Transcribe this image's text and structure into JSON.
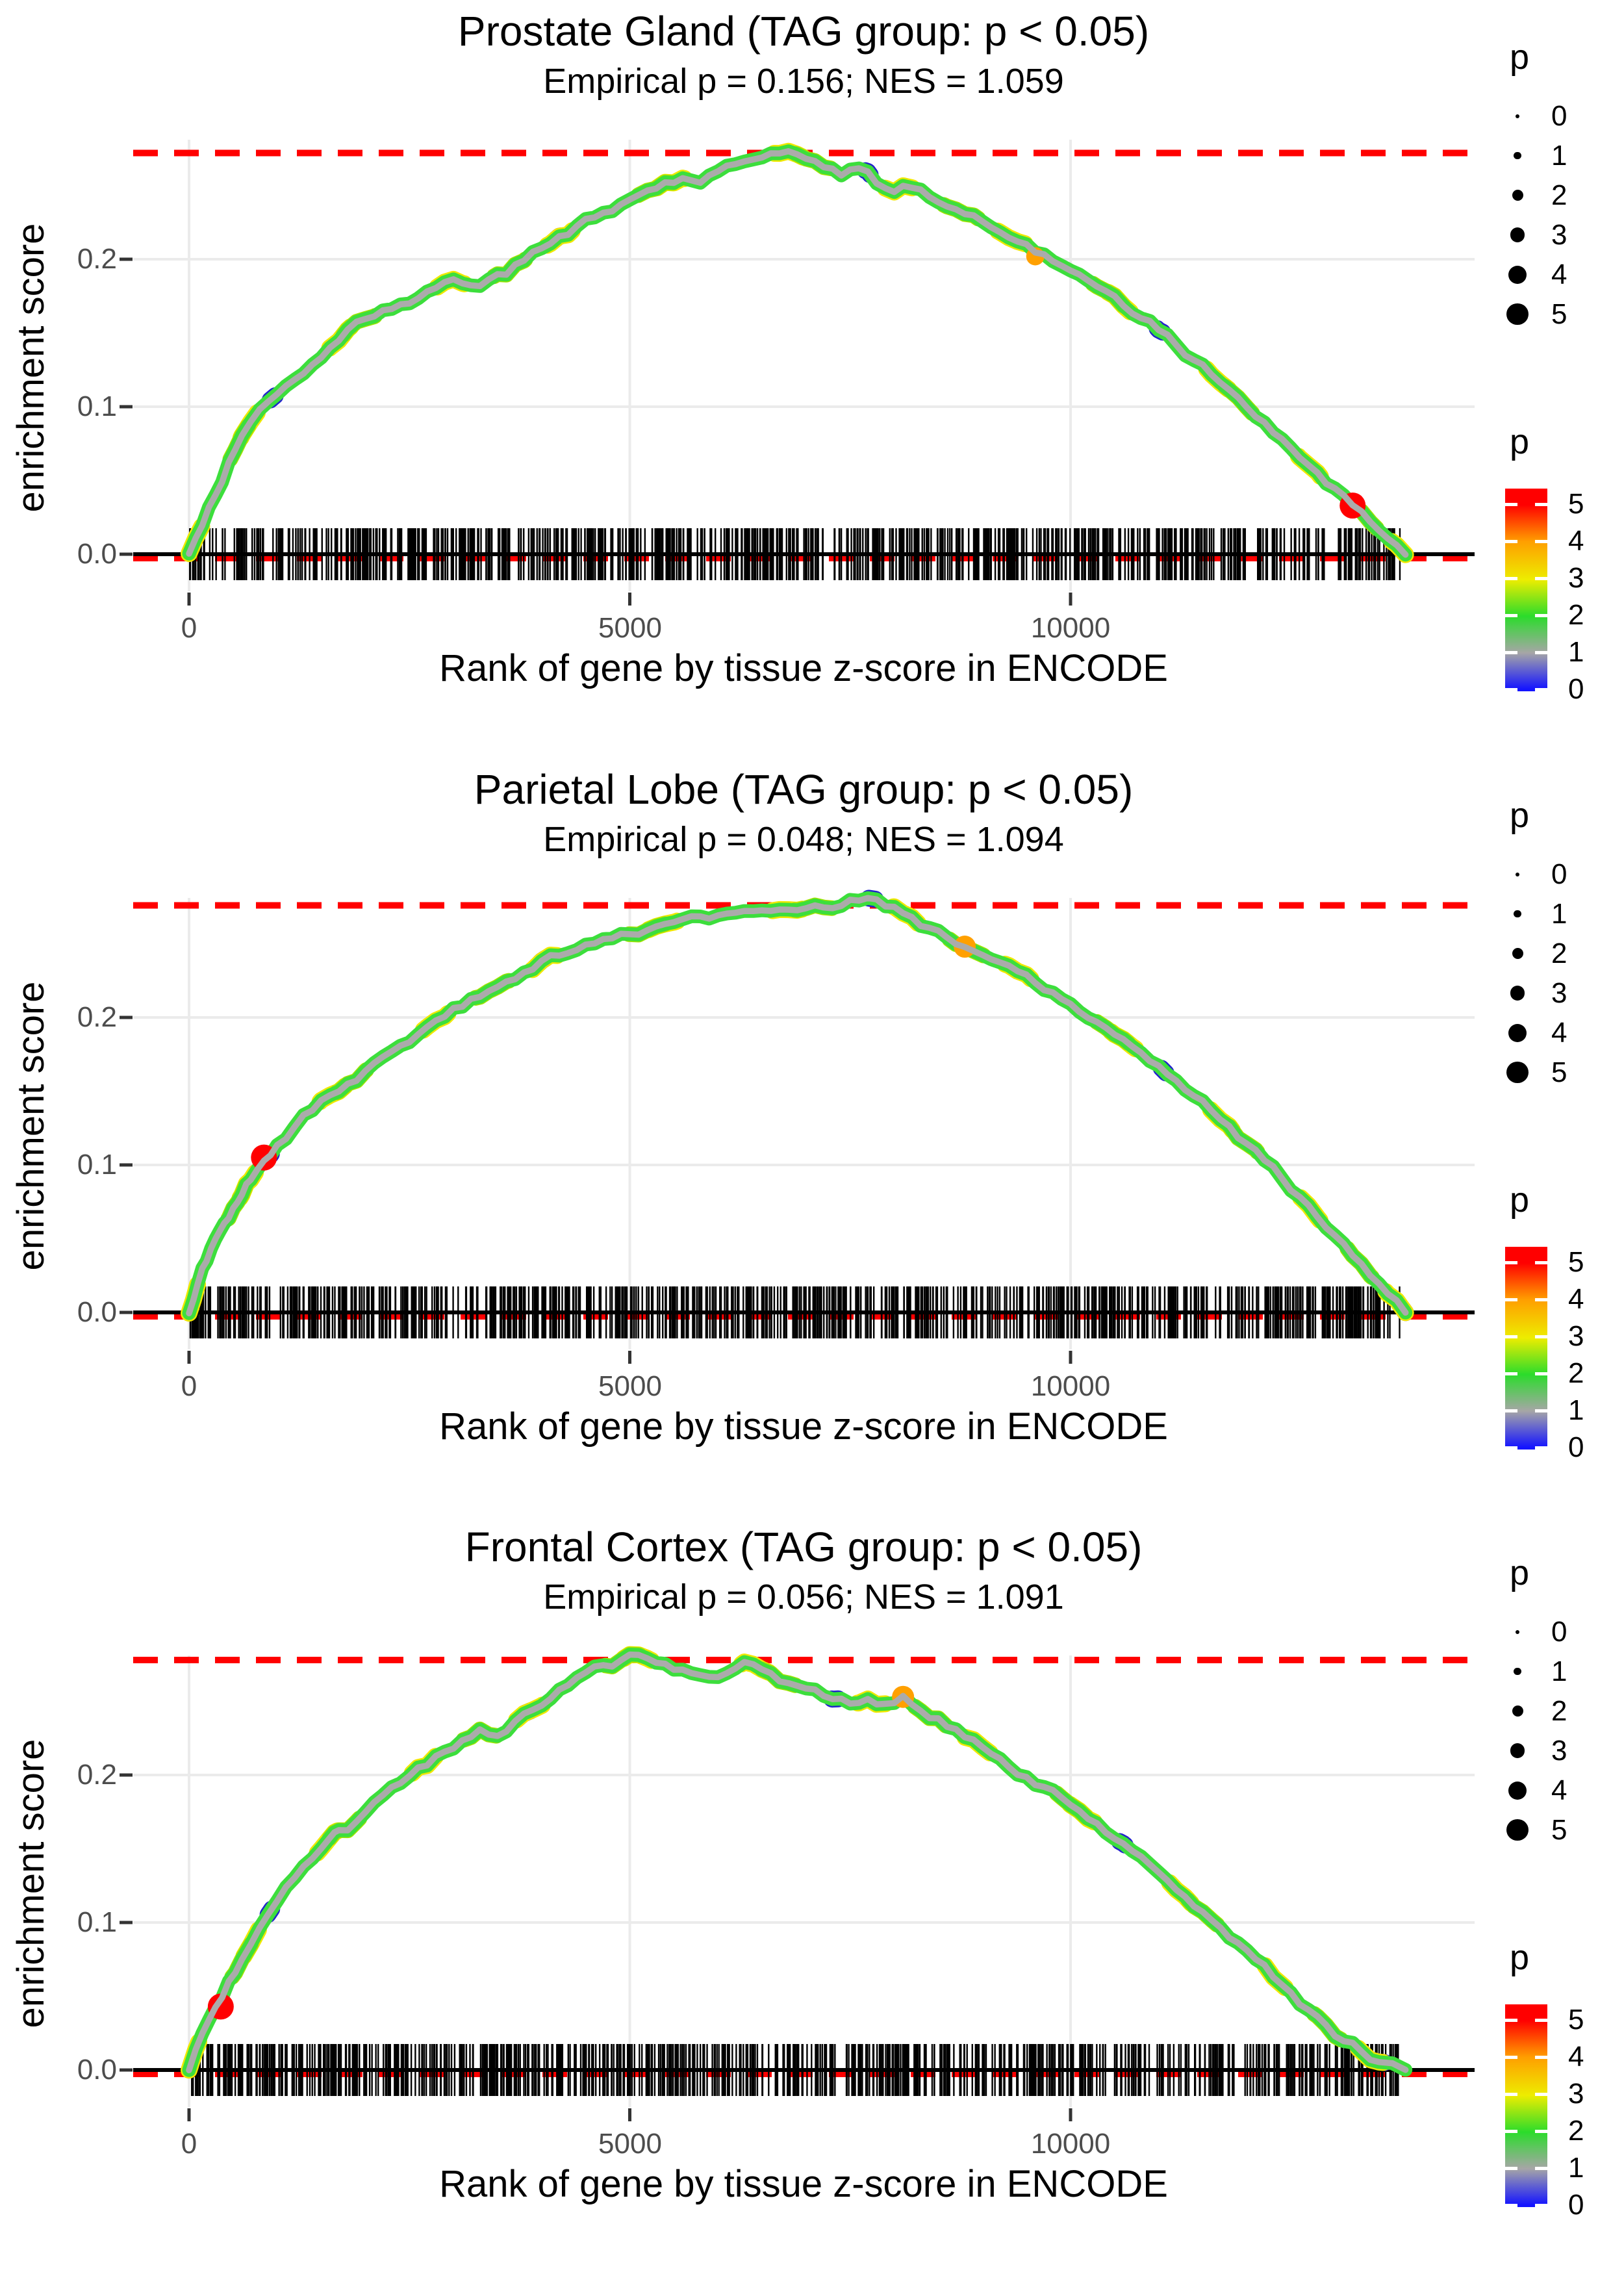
{
  "figure": {
    "background": "#FFFFFF",
    "n_panels": 3
  },
  "colors": {
    "background": "#FFFFFF",
    "grid": "#EBEBEB",
    "axis_tick": "#333333",
    "tick_label": "#4D4D4D",
    "dashed_line": "#FF0000",
    "zero_line": "#000000",
    "rug": "#000000",
    "curve_core_gray": "#ABABAB",
    "curve_green": "#3CDE3C",
    "curve_chartreuse": "#9FE400",
    "curve_yellow": "#F0E800",
    "curve_blue_speck": "#2222CC",
    "highlight_red": "#FF0000",
    "highlight_orange": "#FFA000"
  },
  "axes": {
    "x_ticks": [
      "0",
      "5000",
      "10000"
    ],
    "x_tick_values": [
      0,
      5000,
      10000
    ],
    "y_ticks": [
      "0.0",
      "0.1",
      "0.2"
    ],
    "y_tick_values": [
      0,
      0.1,
      0.2
    ]
  },
  "legend": {
    "size": {
      "title": "p",
      "items": [
        {
          "label": "0",
          "p": 0
        },
        {
          "label": "1",
          "p": 1
        },
        {
          "label": "2",
          "p": 2
        },
        {
          "label": "3",
          "p": 3
        },
        {
          "label": "4",
          "p": 4
        },
        {
          "label": "5",
          "p": 5
        }
      ]
    },
    "color": {
      "title": "p",
      "labels": [
        "5",
        "4",
        "3",
        "2",
        "1",
        "0"
      ],
      "gradient_top_to_bottom": [
        "#FF0000",
        "#FF9E00",
        "#EDED00",
        "#2BDC2B",
        "#A6A6A6",
        "#1414FF"
      ]
    }
  },
  "chart_data": [
    {
      "type": "line",
      "title": "Prostate Gland (TAG group: p < 0.05)",
      "subtitle": "Empirical p = 0.156; NES = 1.059",
      "xlabel": "Rank of gene by tissue z-score in ENCODE",
      "ylabel": "enrichment score",
      "xlim": [
        -634,
        14590
      ],
      "ylim": [
        -0.025,
        0.281
      ],
      "x_ticks": [
        0,
        5000,
        10000
      ],
      "y_ticks": [
        0,
        0.1,
        0.2
      ],
      "dashed_line_y": 0.272,
      "zero_line_y": 0,
      "rug_seed": 11,
      "rug_count": 750,
      "rug_x_range": [
        0,
        13750
      ],
      "series": [
        {
          "name": "running enrichment score (point color/size = p)",
          "points": [
            [
              0,
              0
            ],
            [
              150,
              0.02
            ],
            [
              300,
              0.04
            ],
            [
              450,
              0.062
            ],
            [
              600,
              0.08
            ],
            [
              800,
              0.098
            ],
            [
              1000,
              0.108
            ],
            [
              1200,
              0.118
            ],
            [
              1400,
              0.128
            ],
            [
              1600,
              0.14
            ],
            [
              1800,
              0.152
            ],
            [
              2000,
              0.16
            ],
            [
              2200,
              0.165
            ],
            [
              2400,
              0.17
            ],
            [
              2600,
              0.174
            ],
            [
              2800,
              0.18
            ],
            [
              3000,
              0.186
            ],
            [
              3200,
              0.182
            ],
            [
              3400,
              0.186
            ],
            [
              3600,
              0.19
            ],
            [
              3800,
              0.199
            ],
            [
              4000,
              0.208
            ],
            [
              4200,
              0.215
            ],
            [
              4400,
              0.222
            ],
            [
              4600,
              0.228
            ],
            [
              4800,
              0.232
            ],
            [
              5000,
              0.24
            ],
            [
              5200,
              0.247
            ],
            [
              5400,
              0.252
            ],
            [
              5600,
              0.255
            ],
            [
              5800,
              0.252
            ],
            [
              6000,
              0.259
            ],
            [
              6200,
              0.264
            ],
            [
              6400,
              0.268
            ],
            [
              6600,
              0.272
            ],
            [
              6800,
              0.273
            ],
            [
              7000,
              0.268
            ],
            [
              7200,
              0.262
            ],
            [
              7400,
              0.257
            ],
            [
              7600,
              0.262
            ],
            [
              7800,
              0.252
            ],
            [
              8000,
              0.246
            ],
            [
              8200,
              0.249
            ],
            [
              8400,
              0.242
            ],
            [
              8600,
              0.236
            ],
            [
              8800,
              0.231
            ],
            [
              9000,
              0.226
            ],
            [
              9200,
              0.218
            ],
            [
              9400,
              0.212
            ],
            [
              9600,
              0.205
            ],
            [
              9800,
              0.199
            ],
            [
              10000,
              0.192
            ],
            [
              10200,
              0.185
            ],
            [
              10400,
              0.178
            ],
            [
              10600,
              0.169
            ],
            [
              10800,
              0.16
            ],
            [
              11000,
              0.152
            ],
            [
              11200,
              0.142
            ],
            [
              11400,
              0.132
            ],
            [
              11600,
              0.122
            ],
            [
              11800,
              0.111
            ],
            [
              12000,
              0.1
            ],
            [
              12200,
              0.09
            ],
            [
              12400,
              0.078
            ],
            [
              12600,
              0.066
            ],
            [
              12800,
              0.055
            ],
            [
              13000,
              0.044
            ],
            [
              13200,
              0.033
            ],
            [
              13400,
              0.022
            ],
            [
              13600,
              0.01
            ],
            [
              13800,
              0
            ]
          ]
        }
      ],
      "highlight_points": [
        {
          "x": 13200,
          "y": 0.033,
          "p": 5,
          "color": "#FF0000"
        },
        {
          "x": 9600,
          "y": 0.202,
          "p": 3,
          "color": "#FFA000"
        }
      ]
    },
    {
      "type": "line",
      "title": "Parietal Lobe (TAG group: p < 0.05)",
      "subtitle": "Empirical p = 0.048; NES = 1.094",
      "xlabel": "Rank of gene by tissue z-score in ENCODE",
      "ylabel": "enrichment score",
      "xlim": [
        -634,
        14590
      ],
      "ylim": [
        -0.025,
        0.281
      ],
      "x_ticks": [
        0,
        5000,
        10000
      ],
      "y_ticks": [
        0,
        0.1,
        0.2
      ],
      "dashed_line_y": 0.276,
      "zero_line_y": 0,
      "rug_seed": 29,
      "rug_count": 750,
      "rug_x_range": [
        0,
        13750
      ],
      "series": [
        {
          "name": "running enrichment score (point color/size = p)",
          "points": [
            [
              0,
              0
            ],
            [
              100,
              0.02
            ],
            [
              200,
              0.035
            ],
            [
              300,
              0.05
            ],
            [
              400,
              0.06
            ],
            [
              500,
              0.07
            ],
            [
              600,
              0.08
            ],
            [
              700,
              0.09
            ],
            [
              850,
              0.103
            ],
            [
              1000,
              0.113
            ],
            [
              1200,
              0.126
            ],
            [
              1400,
              0.137
            ],
            [
              1600,
              0.147
            ],
            [
              1800,
              0.155
            ],
            [
              2000,
              0.164
            ],
            [
              2200,
              0.174
            ],
            [
              2400,
              0.181
            ],
            [
              2600,
              0.189
            ],
            [
              2800,
              0.198
            ],
            [
              3000,
              0.206
            ],
            [
              3200,
              0.213
            ],
            [
              3400,
              0.218
            ],
            [
              3600,
              0.224
            ],
            [
              3800,
              0.231
            ],
            [
              4000,
              0.238
            ],
            [
              4200,
              0.242
            ],
            [
              4400,
              0.246
            ],
            [
              4600,
              0.25
            ],
            [
              4800,
              0.253
            ],
            [
              5000,
              0.256
            ],
            [
              5200,
              0.259
            ],
            [
              5400,
              0.263
            ],
            [
              5600,
              0.266
            ],
            [
              5800,
              0.268
            ],
            [
              6000,
              0.269
            ],
            [
              6200,
              0.271
            ],
            [
              6400,
              0.272
            ],
            [
              6600,
              0.272
            ],
            [
              6800,
              0.273
            ],
            [
              7000,
              0.274
            ],
            [
              7200,
              0.275
            ],
            [
              7400,
              0.276
            ],
            [
              7600,
              0.279
            ],
            [
              7800,
              0.28
            ],
            [
              8000,
              0.275
            ],
            [
              8200,
              0.268
            ],
            [
              8400,
              0.261
            ],
            [
              8600,
              0.254
            ],
            [
              8800,
              0.248
            ],
            [
              9000,
              0.243
            ],
            [
              9200,
              0.237
            ],
            [
              9400,
              0.231
            ],
            [
              9600,
              0.224
            ],
            [
              9800,
              0.217
            ],
            [
              10000,
              0.209
            ],
            [
              10200,
              0.2
            ],
            [
              10400,
              0.193
            ],
            [
              10600,
              0.185
            ],
            [
              10800,
              0.176
            ],
            [
              11000,
              0.167
            ],
            [
              11200,
              0.157
            ],
            [
              11400,
              0.147
            ],
            [
              11600,
              0.137
            ],
            [
              11800,
              0.126
            ],
            [
              12000,
              0.115
            ],
            [
              12200,
              0.103
            ],
            [
              12400,
              0.091
            ],
            [
              12600,
              0.078
            ],
            [
              12800,
              0.065
            ],
            [
              13000,
              0.052
            ],
            [
              13200,
              0.038
            ],
            [
              13400,
              0.025
            ],
            [
              13600,
              0.012
            ],
            [
              13800,
              0
            ]
          ]
        }
      ],
      "highlight_points": [
        {
          "x": 850,
          "y": 0.105,
          "p": 5,
          "color": "#FF0000"
        },
        {
          "x": 8800,
          "y": 0.248,
          "p": 4,
          "color": "#FFA000"
        }
      ]
    },
    {
      "type": "line",
      "title": "Frontal Cortex (TAG group: p < 0.05)",
      "subtitle": "Empirical p = 0.056; NES = 1.091",
      "xlabel": "Rank of gene by tissue z-score in ENCODE",
      "ylabel": "enrichment score",
      "xlim": [
        -634,
        14590
      ],
      "ylim": [
        -0.025,
        0.281
      ],
      "x_ticks": [
        0,
        5000,
        10000
      ],
      "y_ticks": [
        0,
        0.1,
        0.2
      ],
      "dashed_line_y": 0.278,
      "zero_line_y": 0,
      "rug_seed": 47,
      "rug_count": 750,
      "rug_x_range": [
        0,
        13750
      ],
      "series": [
        {
          "name": "running enrichment score (point color/size = p)",
          "points": [
            [
              0,
              0
            ],
            [
              150,
              0.025
            ],
            [
              300,
              0.043
            ],
            [
              450,
              0.06
            ],
            [
              600,
              0.075
            ],
            [
              800,
              0.097
            ],
            [
              1000,
              0.115
            ],
            [
              1200,
              0.13
            ],
            [
              1400,
              0.143
            ],
            [
              1600,
              0.157
            ],
            [
              1700,
              0.162
            ],
            [
              1900,
              0.168
            ],
            [
              2100,
              0.181
            ],
            [
              2300,
              0.192
            ],
            [
              2500,
              0.2
            ],
            [
              2700,
              0.207
            ],
            [
              2900,
              0.216
            ],
            [
              3100,
              0.224
            ],
            [
              3300,
              0.231
            ],
            [
              3500,
              0.226
            ],
            [
              3700,
              0.236
            ],
            [
              3900,
              0.244
            ],
            [
              4100,
              0.252
            ],
            [
              4300,
              0.261
            ],
            [
              4500,
              0.269
            ],
            [
              4700,
              0.274
            ],
            [
              4900,
              0.278
            ],
            [
              5100,
              0.281
            ],
            [
              5300,
              0.276
            ],
            [
              5500,
              0.272
            ],
            [
              5700,
              0.269
            ],
            [
              5900,
              0.266
            ],
            [
              6100,
              0.269
            ],
            [
              6300,
              0.276
            ],
            [
              6500,
              0.271
            ],
            [
              6700,
              0.264
            ],
            [
              6900,
              0.26
            ],
            [
              7100,
              0.258
            ],
            [
              7300,
              0.252
            ],
            [
              7500,
              0.249
            ],
            [
              7700,
              0.252
            ],
            [
              7900,
              0.248
            ],
            [
              8100,
              0.253
            ],
            [
              8300,
              0.243
            ],
            [
              8500,
              0.238
            ],
            [
              8700,
              0.231
            ],
            [
              8900,
              0.224
            ],
            [
              9100,
              0.214
            ],
            [
              9300,
              0.206
            ],
            [
              9500,
              0.199
            ],
            [
              9700,
              0.192
            ],
            [
              9900,
              0.185
            ],
            [
              10100,
              0.176
            ],
            [
              10300,
              0.167
            ],
            [
              10500,
              0.157
            ],
            [
              10700,
              0.148
            ],
            [
              10900,
              0.139
            ],
            [
              11100,
              0.128
            ],
            [
              11300,
              0.118
            ],
            [
              11500,
              0.107
            ],
            [
              11700,
              0.096
            ],
            [
              11900,
              0.086
            ],
            [
              12100,
              0.075
            ],
            [
              12300,
              0.063
            ],
            [
              12500,
              0.052
            ],
            [
              12700,
              0.041
            ],
            [
              12900,
              0.03
            ],
            [
              13100,
              0.02
            ],
            [
              13300,
              0.012
            ],
            [
              13500,
              0.005
            ],
            [
              13800,
              0
            ]
          ]
        }
      ],
      "highlight_points": [
        {
          "x": 360,
          "y": 0.043,
          "p": 5,
          "color": "#FF0000"
        },
        {
          "x": 8100,
          "y": 0.253,
          "p": 4,
          "color": "#FFA000"
        }
      ]
    }
  ]
}
